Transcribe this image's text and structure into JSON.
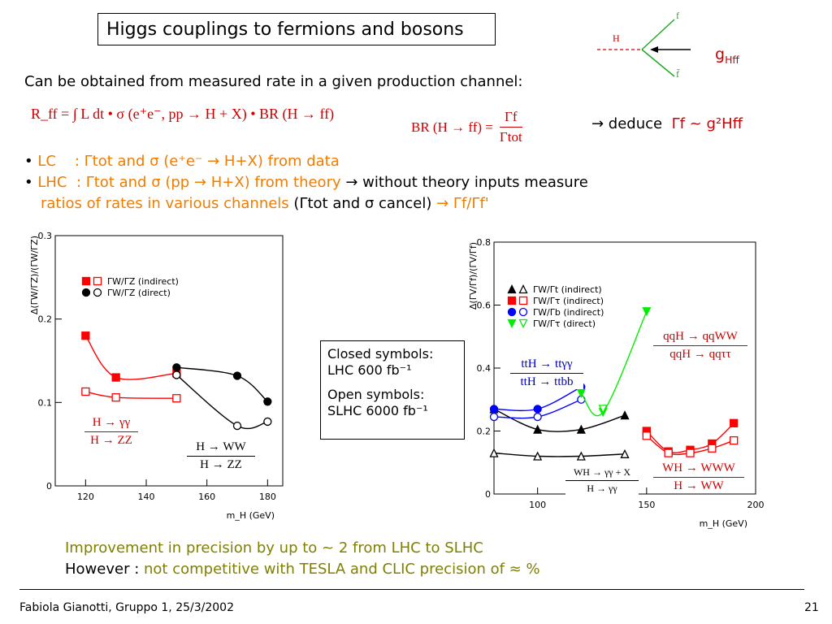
{
  "title": "Higgs couplings to fermions and bosons",
  "diagram": {
    "H": "H",
    "f_top": "f",
    "f_bottom": "f̄",
    "g_label": "g",
    "g_sub": "Hff"
  },
  "intro": "Can be obtained from measured rate in a given production channel:",
  "eq1": "R_ff = ∫ L dt • σ (e⁺e⁻, pp → H + X) • BR (H → ff)",
  "eq2_left": "BR (H → ff) =",
  "eq2_num": "Γf",
  "eq2_den": "Γtot",
  "deduce": "→  deduce",
  "deduce_rel": "Γf ~ g²Hff",
  "bullets": {
    "b1_label": "LC",
    "b1_text": ": Γtot and σ (e⁺e⁻ → H+X) from data",
    "b2_label": "LHC",
    "b2_text_a": ": Γtot and σ (pp → H+X) from theory",
    "b2_text_b": "→ without theory inputs measure",
    "b3_text_a": "ratios of rates in various channels",
    "b3_text_b": "(Γtot and σ cancel)",
    "b3_text_c": "→ Γf/Γf'"
  },
  "legend_box": {
    "l1": "Closed symbols:",
    "l2": "LHC     600 fb⁻¹",
    "l3": "Open symbols:",
    "l4": "SLHC 6000 fb⁻¹"
  },
  "conclusion": {
    "line1": "Improvement in precision by up to ~ 2 from LHC to SLHC",
    "line2_a": "However :",
    "line2_b": "not competitive with TESLA and CLIC precision of ≈ %"
  },
  "footer": {
    "left": "Fabiola Gianotti,  Gruppo 1, 25/3/2002",
    "page": "21"
  },
  "chart_data": [
    {
      "type": "line",
      "title": "",
      "xlabel": "m_H (GeV)",
      "ylabel": "Δ(ΓW/ΓZ)/(ΓW/ΓZ)",
      "xlim": [
        110,
        185
      ],
      "ylim": [
        0,
        0.3
      ],
      "xticks": [
        120,
        140,
        160,
        180
      ],
      "yticks": [
        0,
        0.1,
        0.2,
        0.3
      ],
      "legend": [
        "ΓW/ΓZ (indirect)",
        "ΓW/ΓZ (direct)"
      ],
      "annotations": [
        {
          "num": "H → γγ",
          "den": "H → ZZ",
          "color": "#cc0000"
        },
        {
          "num": "H → WW",
          "den": "H → ZZ",
          "color": "#000000"
        }
      ],
      "series": [
        {
          "name": "ΓW/ΓZ indirect LHC",
          "color": "#ff0000",
          "marker": "square-filled",
          "x": [
            120,
            130,
            150
          ],
          "y": [
            0.18,
            0.13,
            0.135
          ]
        },
        {
          "name": "ΓW/ΓZ indirect SLHC",
          "color": "#ff0000",
          "marker": "square-open",
          "x": [
            120,
            130,
            150
          ],
          "y": [
            0.113,
            0.106,
            0.105
          ]
        },
        {
          "name": "ΓW/ΓZ direct LHC",
          "color": "#000000",
          "marker": "circle-filled",
          "x": [
            150,
            170,
            180
          ],
          "y": [
            0.142,
            0.132,
            0.101
          ]
        },
        {
          "name": "ΓW/ΓZ direct SLHC",
          "color": "#000000",
          "marker": "circle-open",
          "x": [
            150,
            170,
            180
          ],
          "y": [
            0.133,
            0.072,
            0.077
          ]
        }
      ]
    },
    {
      "type": "line",
      "title": "",
      "xlabel": "m_H (GeV)",
      "ylabel": "Δ(ΓV/Γf)/(ΓV/Γf)",
      "xlim": [
        80,
        200
      ],
      "ylim": [
        0,
        0.8
      ],
      "xticks": [
        100,
        150,
        200
      ],
      "yticks": [
        0,
        0.2,
        0.4,
        0.6,
        0.8
      ],
      "legend": [
        "ΓW/Γt (indirect)",
        "ΓW/Γτ (indirect)",
        "ΓW/Γb (indirect)",
        "ΓW/Γτ (direct)"
      ],
      "annotations": [
        {
          "num": "qqH → qqWW",
          "den": "qqH → qqττ",
          "color": "#cc0000"
        },
        {
          "num": "ttH → ttγγ",
          "den": "ttH → ttbb",
          "color": "#0000cc"
        },
        {
          "num": "WH → γγ + X",
          "den": "H → γγ",
          "color": "#000000"
        },
        {
          "num": "WH → WWW",
          "den": "H → WW",
          "color": "#cc0000"
        }
      ],
      "series": [
        {
          "name": "ΓW/Γt LHC",
          "color": "#000000",
          "marker": "triangle-filled",
          "x": [
            80,
            100,
            120,
            140
          ],
          "y": [
            0.27,
            0.205,
            0.205,
            0.25
          ]
        },
        {
          "name": "ΓW/Γt SLHC",
          "color": "#000000",
          "marker": "triangle-open",
          "x": [
            80,
            100,
            120,
            140
          ],
          "y": [
            0.13,
            0.12,
            0.12,
            0.127
          ]
        },
        {
          "name": "ΓW/Γτ LHC",
          "color": "#ff0000",
          "marker": "square-filled",
          "x": [
            150,
            160,
            170,
            180,
            190
          ],
          "y": [
            0.2,
            0.135,
            0.14,
            0.16,
            0.225
          ]
        },
        {
          "name": "ΓW/Γτ SLHC",
          "color": "#ff0000",
          "marker": "square-open",
          "x": [
            150,
            160,
            170,
            180,
            190
          ],
          "y": [
            0.185,
            0.13,
            0.13,
            0.145,
            0.17
          ]
        },
        {
          "name": "ΓW/Γb LHC",
          "color": "#0000ff",
          "marker": "circle-filled",
          "x": [
            80,
            100,
            120
          ],
          "y": [
            0.27,
            0.27,
            0.34
          ]
        },
        {
          "name": "ΓW/Γb SLHC",
          "color": "#0000ff",
          "marker": "circle-open",
          "x": [
            80,
            100,
            120
          ],
          "y": [
            0.245,
            0.245,
            0.3
          ]
        },
        {
          "name": "ΓW/Γτ direct LHC",
          "color": "#00ee00",
          "marker": "triangle-down-filled",
          "x": [
            120,
            130,
            150
          ],
          "y": [
            0.32,
            0.26,
            0.58
          ]
        },
        {
          "name": "ΓW/Γτ direct SLHC",
          "color": "#00ee00",
          "marker": "triangle-down-open",
          "x": [
            130
          ],
          "y": [
            0.27
          ]
        }
      ]
    }
  ]
}
